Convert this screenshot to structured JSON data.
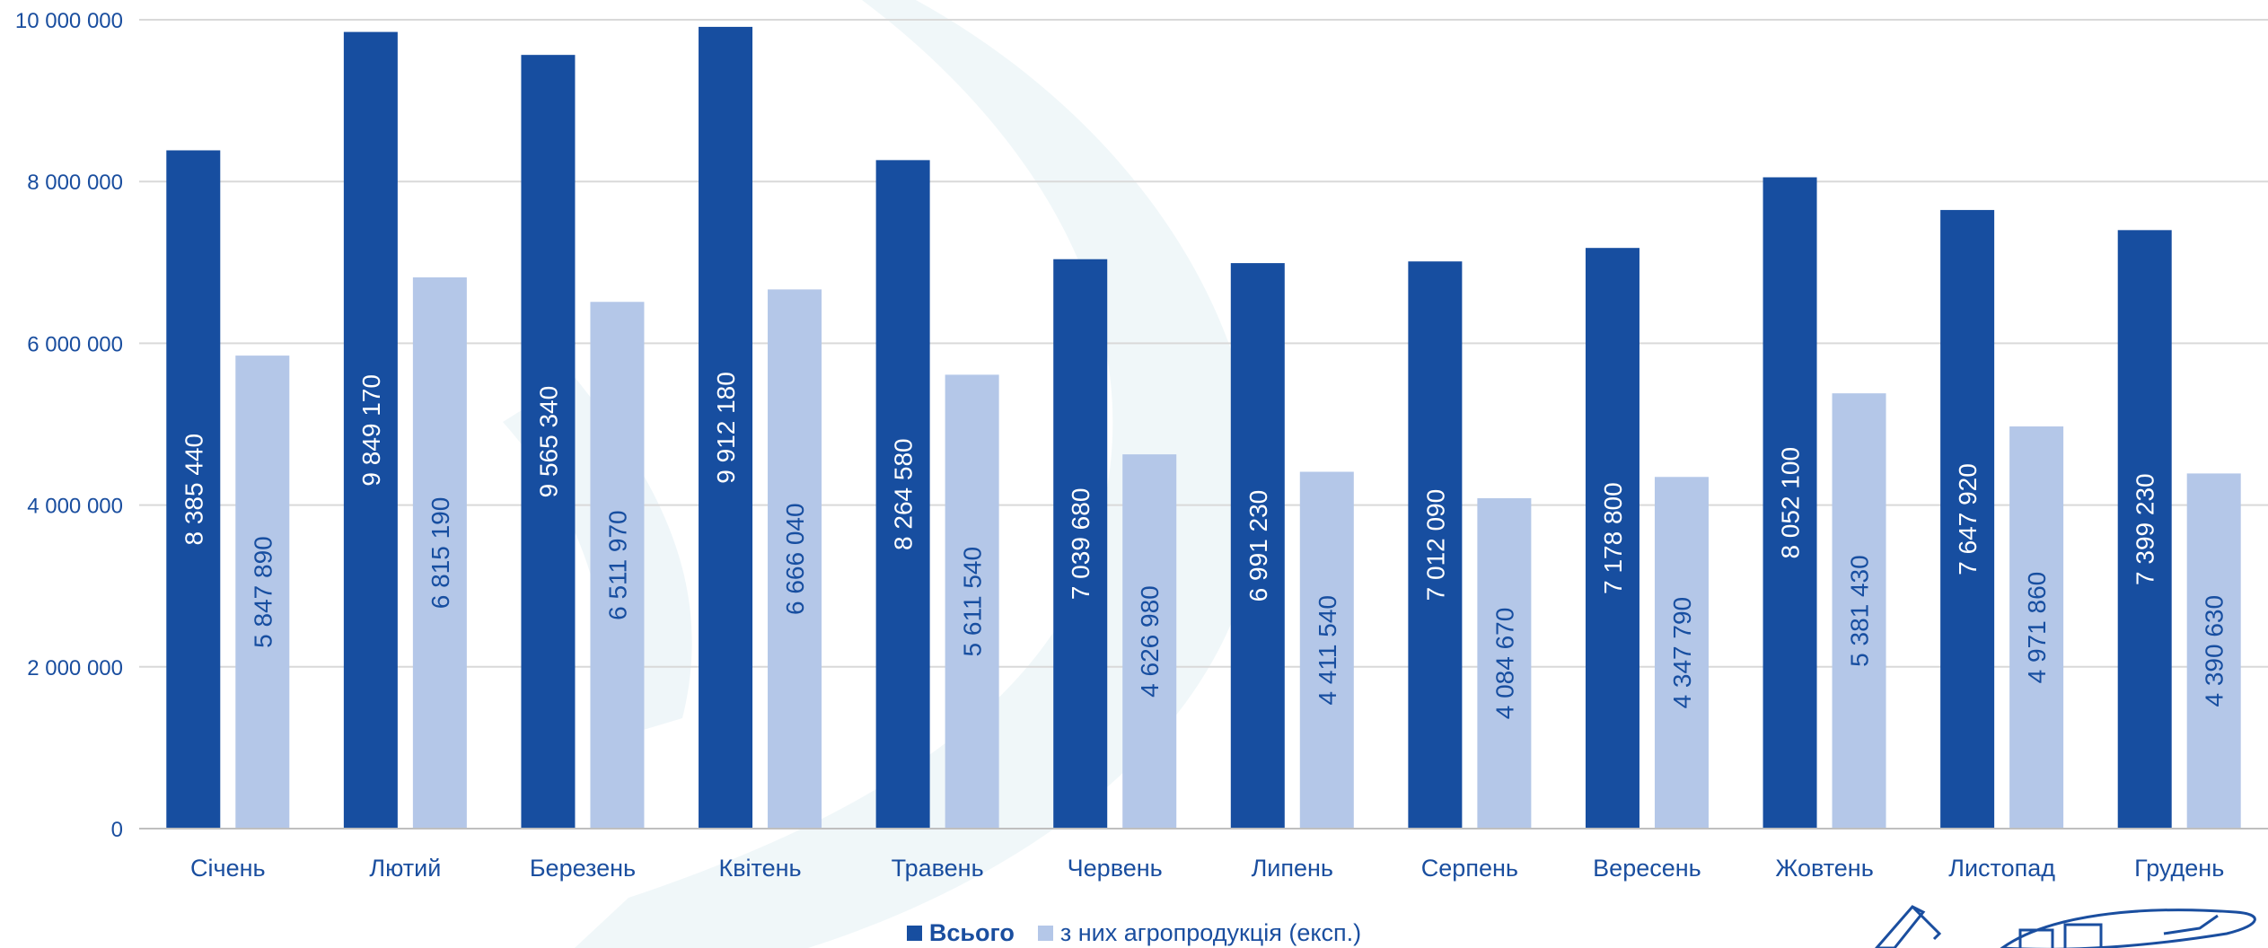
{
  "chart_data": {
    "type": "bar",
    "title": "",
    "xlabel": "",
    "ylabel": "",
    "ylim": [
      0,
      10000000
    ],
    "yticks": [
      0,
      2000000,
      4000000,
      6000000,
      8000000,
      10000000
    ],
    "ytick_labels": [
      "0",
      "2 000 000",
      "4 000 000",
      "6 000 000",
      "8 000 000",
      "10 000 000"
    ],
    "grid": true,
    "legend_position": "bottom",
    "categories": [
      "Січень",
      "Лютий",
      "Березень",
      "Квітень",
      "Травень",
      "Червень",
      "Липень",
      "Серпень",
      "Вересень",
      "Жовтень",
      "Листопад",
      "Грудень"
    ],
    "series": [
      {
        "name": "Всього",
        "color": "#174ea0",
        "label_color": "#ffffff",
        "values": [
          8385440,
          9849170,
          9565340,
          9912180,
          8264580,
          7039680,
          6991230,
          7012090,
          7178800,
          8052100,
          7647920,
          7399230
        ],
        "value_labels": [
          "8 385 440",
          "9 849 170",
          "9 565 340",
          "9 912 180",
          "8 264 580",
          "7 039 680",
          "6 991 230",
          "7 012 090",
          "7 178 800",
          "8 052 100",
          "7 647 920",
          "7 399 230"
        ]
      },
      {
        "name": "з них агропродукція (експ.)",
        "color": "#b4c7e8",
        "label_color": "#174ea0",
        "values": [
          5847890,
          6815190,
          6511970,
          6666040,
          5611540,
          4626980,
          4411540,
          4084670,
          4347790,
          5381430,
          4971860,
          4390630
        ],
        "value_labels": [
          "5 847 890",
          "6 815 190",
          "6 511 970",
          "6 666 040",
          "5 611 540",
          "4 626 980",
          "4 411 540",
          "4 084 670",
          "4 347 790",
          "5 381 430",
          "4 971 860",
          "4 390 630"
        ]
      }
    ]
  },
  "colors": {
    "text": "#1a4e9f",
    "grid": "#d9d9d9",
    "axis": "#bfbfbf"
  }
}
